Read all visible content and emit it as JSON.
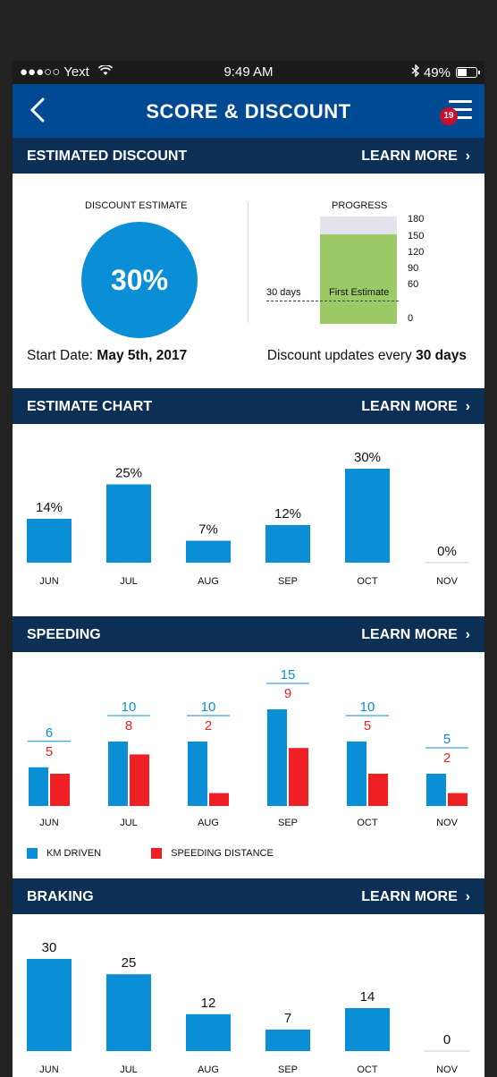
{
  "status": {
    "carrier": "●●●○○ Yext",
    "time": "9:49 AM",
    "battery": "49%"
  },
  "nav": {
    "title": "SCORE & DISCOUNT",
    "badge": "19"
  },
  "colors": {
    "nav_blue": "#004a93",
    "header_navy": "#0b2f55",
    "bar_blue": "#0a8fd6",
    "speed_red": "#ee2024",
    "progress_green": "#9bc965"
  },
  "estimated_discount": {
    "header": "ESTIMATED DISCOUNT",
    "learn_more": "LEARN MORE",
    "discount_label": "DISCOUNT ESTIMATE",
    "discount_value": "30%",
    "progress_label": "PROGRESS",
    "progress_ticks": [
      "180",
      "150",
      "120",
      "90",
      "60",
      "0"
    ],
    "progress_days_label": "30 days",
    "first_estimate_label": "First Estimate",
    "progress_fill_value": 150,
    "progress_max": 180,
    "start_date_label": "Start Date:",
    "start_date_value": "May 5th, 2017",
    "updates_label": "Discount updates every",
    "updates_value": "30 days"
  },
  "estimate_chart": {
    "header": "ESTIMATE CHART",
    "learn_more": "LEARN MORE"
  },
  "speeding": {
    "header": "SPEEDING",
    "learn_more": "LEARN MORE",
    "legend_km": "KM DRIVEN",
    "legend_speed": "SPEEDING DISTANCE"
  },
  "braking": {
    "header": "BRAKING",
    "learn_more": "LEARN MORE"
  },
  "chart_data": [
    {
      "type": "bar",
      "categories": [
        "JUN",
        "JUL",
        "AUG",
        "SEP",
        "OCT",
        "NOV"
      ],
      "values": [
        14,
        25,
        7,
        12,
        30,
        0
      ],
      "value_labels": [
        "14%",
        "25%",
        "7%",
        "12%",
        "30%",
        "0%"
      ],
      "ylim": [
        0,
        30
      ]
    },
    {
      "type": "bar",
      "categories": [
        "JUN",
        "JUL",
        "AUG",
        "SEP",
        "OCT",
        "NOV"
      ],
      "series": [
        {
          "name": "KM DRIVEN",
          "values": [
            6,
            10,
            10,
            15,
            10,
            5
          ]
        },
        {
          "name": "SPEEDING DISTANCE",
          "values": [
            5,
            8,
            2,
            9,
            5,
            2
          ]
        }
      ],
      "ylim": [
        0,
        15
      ]
    },
    {
      "type": "bar",
      "categories": [
        "JUN",
        "JUL",
        "AUG",
        "SEP",
        "OCT",
        "NOV"
      ],
      "values": [
        30,
        25,
        12,
        7,
        14,
        0
      ],
      "ylim": [
        0,
        30
      ]
    }
  ]
}
